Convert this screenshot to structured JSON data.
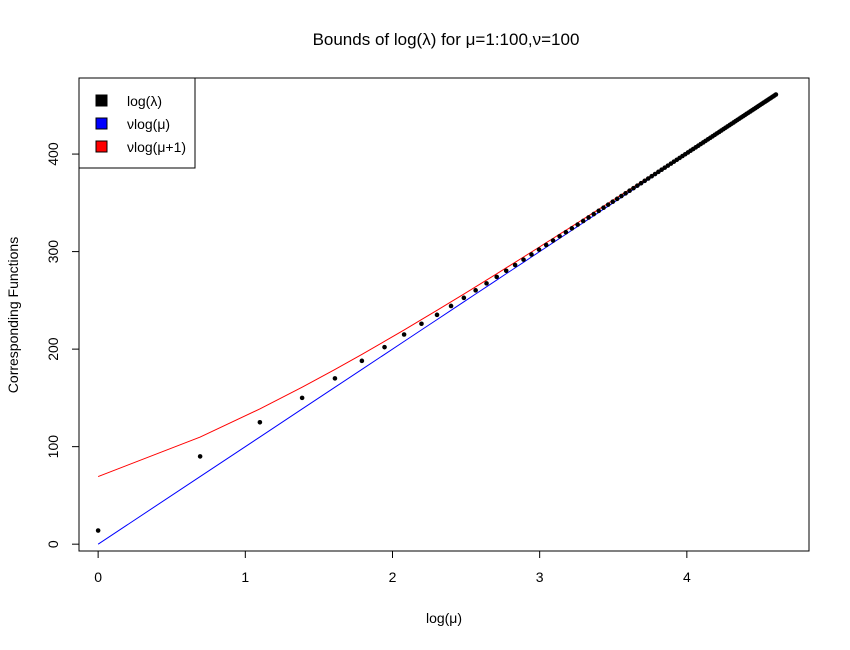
{
  "chart_data": {
    "type": "scatter",
    "title": "Bounds of log(λ) for μ=1:100,ν=100",
    "xlabel": "log(μ)",
    "ylabel": "Corresponding Functions",
    "xlim": [
      -0.13,
      4.83
    ],
    "ylim": [
      -7,
      478
    ],
    "x_ticks": [
      0,
      1,
      2,
      3,
      4
    ],
    "y_ticks": [
      0,
      100,
      200,
      300,
      400
    ],
    "grid": false,
    "legend_position": "top-left",
    "mu_range": [
      1,
      100
    ],
    "nu": 100,
    "series": [
      {
        "name": "log(λ)",
        "color": "#000000",
        "style": "points",
        "points": [
          [
            0,
            14
          ],
          [
            0.693,
            90
          ],
          [
            1.099,
            125
          ],
          [
            1.386,
            150
          ],
          [
            1.609,
            170
          ],
          [
            1.792,
            188
          ],
          [
            1.946,
            202
          ],
          [
            2.079,
            215
          ],
          [
            2.197,
            226
          ]
        ]
      },
      {
        "name": "νlog(μ)",
        "color": "#0000ff",
        "style": "line"
      },
      {
        "name": "νlog(μ+1)",
        "color": "#ff0000",
        "style": "line"
      }
    ]
  }
}
